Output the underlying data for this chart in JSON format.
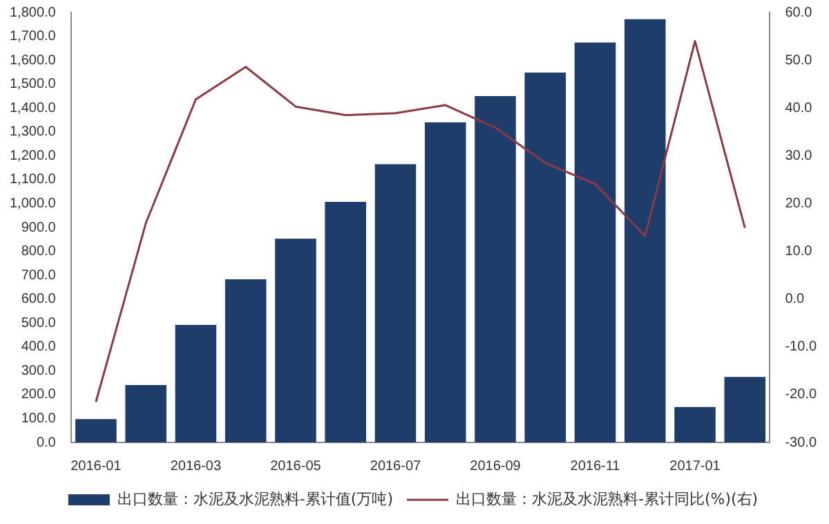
{
  "chart_data": {
    "type": "bar",
    "categories": [
      "2016-01",
      null,
      "2016-03",
      null,
      "2016-05",
      null,
      "2016-07",
      null,
      "2016-09",
      null,
      "2016-11",
      null,
      "2017-01",
      null
    ],
    "series": [
      {
        "name": "出口数量：水泥及水泥熟料-累计值(万吨)",
        "color": "#1e3d6b",
        "values": [
          98,
          240,
          492,
          683,
          853,
          1007,
          1165,
          1340,
          1450,
          1548,
          1674,
          1772,
          148,
          274
        ]
      },
      {
        "name": "出口数量：水泥及水泥熟料-累计同比(%)(右)",
        "type": "line",
        "axis": "y2",
        "color": "#8b3a45",
        "values": [
          -21.5,
          15.9,
          41.8,
          48.6,
          40.3,
          38.5,
          38.9,
          40.6,
          35.9,
          28.5,
          24.1,
          13.2,
          54,
          14.9
        ]
      }
    ],
    "ylim": [
      0,
      1800
    ],
    "yticks": [
      {
        "value": 0,
        "label": "0.0"
      },
      {
        "value": 100,
        "label": "100.0"
      },
      {
        "value": 200,
        "label": "200.0"
      },
      {
        "value": 300,
        "label": "300.0"
      },
      {
        "value": 400,
        "label": "400.0"
      },
      {
        "value": 500,
        "label": "500.0"
      },
      {
        "value": 600,
        "label": "600.0"
      },
      {
        "value": 700,
        "label": "700.0"
      },
      {
        "value": 800,
        "label": "800.0"
      },
      {
        "value": 900,
        "label": "900.0"
      },
      {
        "value": 1000,
        "label": "1,000.0"
      },
      {
        "value": 1100,
        "label": "1,100.0"
      },
      {
        "value": 1200,
        "label": "1,200.0"
      },
      {
        "value": 1300,
        "label": "1,300.0"
      },
      {
        "value": 1400,
        "label": "1,400.0"
      },
      {
        "value": 1500,
        "label": "1,500.0"
      },
      {
        "value": 1600,
        "label": "1,600.0"
      },
      {
        "value": 1700,
        "label": "1,700.0"
      },
      {
        "value": 1800,
        "label": "1,800.0"
      }
    ],
    "y2lim": [
      -30,
      60
    ],
    "y2ticks": [
      {
        "value": -30,
        "label": "-30.0"
      },
      {
        "value": -20,
        "label": "-20.0"
      },
      {
        "value": -10,
        "label": "-10.0"
      },
      {
        "value": 0,
        "label": "0.0"
      },
      {
        "value": 10,
        "label": "10.0"
      },
      {
        "value": 20,
        "label": "20.0"
      },
      {
        "value": 30,
        "label": "30.0"
      },
      {
        "value": 40,
        "label": "40.0"
      },
      {
        "value": 50,
        "label": "50.0"
      },
      {
        "value": 60,
        "label": "60.0"
      }
    ],
    "grid": false,
    "legend": "bottom",
    "marker": "none",
    "line_style": "solid"
  }
}
